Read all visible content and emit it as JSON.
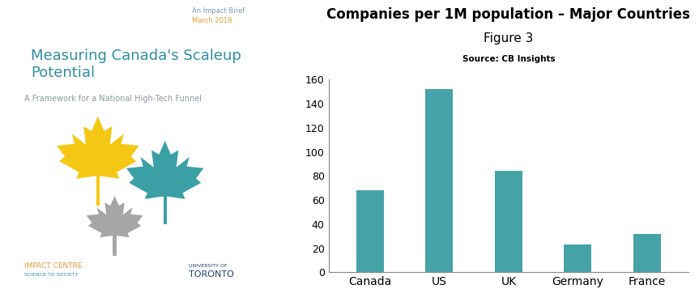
{
  "cover": {
    "kicker": "An Impact Brief",
    "date": "March 2018",
    "title": "Measuring Canada's Scaleup Potential",
    "subtitle": "A Framework for a National High-Tech Funnel",
    "footer_left": {
      "name": "IMPACT CENTRE",
      "tagline": "SCIENCE TO SOCIETY"
    },
    "footer_right": {
      "line1": "UNIVERSITY OF",
      "line2": "TORONTO"
    }
  },
  "chart_data": {
    "type": "bar",
    "title": "Companies per 1M population – Major Countries",
    "subtitle": "Figure 3",
    "source": "Source: CB Insights",
    "categories": [
      "Canada",
      "US",
      "UK",
      "Germany",
      "France"
    ],
    "values": [
      68,
      152,
      84,
      23,
      32
    ],
    "color": "#45a3a8",
    "ylim": [
      0,
      160
    ],
    "yticks": [
      0,
      20,
      40,
      60,
      80,
      100,
      120,
      140,
      160
    ],
    "grid": false
  }
}
